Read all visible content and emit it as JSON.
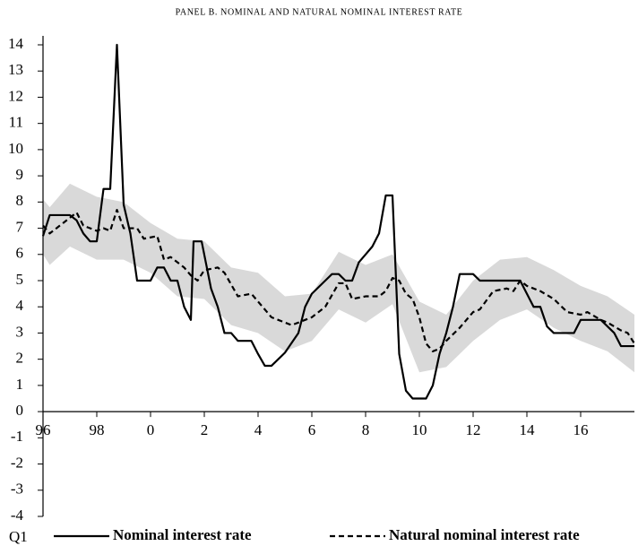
{
  "chart_data": {
    "type": "line",
    "title": "PANEL B. NOMINAL AND NATURAL NOMINAL INTEREST RATE",
    "xlabel": "Q1",
    "xlim": [
      1996,
      2018
    ],
    "xticks": [
      {
        "value": 1996,
        "label": "96"
      },
      {
        "value": 1998,
        "label": "98"
      },
      {
        "value": 2000,
        "label": "0"
      },
      {
        "value": 2002,
        "label": "2"
      },
      {
        "value": 2004,
        "label": "4"
      },
      {
        "value": 2006,
        "label": "6"
      },
      {
        "value": 2008,
        "label": "8"
      },
      {
        "value": 2010,
        "label": "10"
      },
      {
        "value": 2012,
        "label": "12"
      },
      {
        "value": 2014,
        "label": "14"
      },
      {
        "value": 2016,
        "label": "16"
      }
    ],
    "ylim": [
      -4,
      14
    ],
    "yticks": [
      -4,
      -3,
      -2,
      -1,
      0,
      1,
      2,
      3,
      4,
      5,
      6,
      7,
      8,
      9,
      10,
      11,
      12,
      13,
      14
    ],
    "band": {
      "color": "#d9d9d9",
      "x": [
        1996,
        1996.25,
        1997,
        1998,
        1999,
        2000,
        2001,
        2002,
        2003,
        2004,
        2005,
        2006,
        2007,
        2008,
        2009,
        2010,
        2011,
        2012,
        2013,
        2014,
        2015,
        2016,
        2017,
        2018
      ],
      "upper": [
        8.1,
        7.8,
        8.7,
        8.2,
        8.0,
        7.2,
        6.6,
        6.5,
        5.5,
        5.3,
        4.4,
        4.5,
        6.1,
        5.6,
        6.0,
        4.2,
        3.7,
        5.0,
        5.8,
        5.9,
        5.4,
        4.8,
        4.4,
        3.7
      ],
      "lower": [
        6.0,
        5.6,
        6.3,
        5.8,
        5.8,
        5.3,
        4.4,
        4.3,
        3.3,
        3.0,
        2.3,
        2.7,
        3.9,
        3.4,
        4.1,
        1.5,
        1.7,
        2.7,
        3.5,
        3.9,
        3.2,
        2.7,
        2.3,
        1.5
      ]
    },
    "series": [
      {
        "name": "Nominal interest rate",
        "color": "#000000",
        "dashed": false,
        "x": [
          1996,
          1996.25,
          1997,
          1997.25,
          1997.5,
          1997.75,
          1998,
          1998.25,
          1998.5,
          1998.75,
          1999,
          1999.25,
          1999.5,
          2000,
          2000.25,
          2000.5,
          2000.75,
          2001,
          2001.25,
          2001.5,
          2001.6,
          2001.9,
          2002.25,
          2002.5,
          2002.75,
          2003,
          2003.25,
          2003.75,
          2004,
          2004.25,
          2004.5,
          2004.75,
          2005,
          2005.5,
          2005.75,
          2006,
          2006.5,
          2006.75,
          2007,
          2007.25,
          2007.5,
          2007.75,
          2008,
          2008.25,
          2008.5,
          2008.75,
          2009,
          2009.25,
          2009.5,
          2009.75,
          2010.25,
          2010.5,
          2010.75,
          2011,
          2011.25,
          2011.5,
          2012,
          2012.25,
          2013.75,
          2014,
          2014.25,
          2014.5,
          2014.75,
          2015,
          2015.75,
          2016,
          2016.75,
          2017.25,
          2017.5,
          2018
        ],
        "values": [
          6.7,
          7.5,
          7.5,
          7.3,
          6.8,
          6.5,
          6.5,
          8.5,
          8.5,
          14.0,
          7.9,
          6.8,
          5.0,
          5.0,
          5.5,
          5.5,
          5.0,
          5.0,
          4.0,
          3.5,
          6.5,
          6.5,
          4.7,
          4.0,
          3.0,
          3.0,
          2.7,
          2.7,
          2.2,
          1.75,
          1.75,
          2.0,
          2.25,
          3.0,
          4.0,
          4.5,
          5.0,
          5.25,
          5.25,
          5.0,
          5.0,
          5.7,
          6.0,
          6.3,
          6.8,
          8.25,
          8.25,
          2.2,
          0.8,
          0.5,
          0.5,
          1.0,
          2.2,
          3.0,
          4.0,
          5.25,
          5.25,
          5.0,
          5.0,
          4.5,
          4.0,
          4.0,
          3.25,
          3.0,
          3.0,
          3.5,
          3.5,
          3.0,
          2.5,
          2.5
        ]
      },
      {
        "name": "Natural nominal interest rate",
        "color": "#000000",
        "dashed": true,
        "x": [
          1996,
          1996.25,
          1996.75,
          1997.25,
          1997.5,
          1998,
          1998.25,
          1998.5,
          1998.75,
          1999,
          1999.5,
          1999.75,
          2000.25,
          2000.5,
          2000.75,
          2001.25,
          2001.5,
          2001.75,
          2002,
          2002.5,
          2002.75,
          2003.25,
          2003.75,
          2004,
          2004.5,
          2005,
          2005.25,
          2005.75,
          2006,
          2006.5,
          2007,
          2007.25,
          2007.5,
          2008,
          2008.5,
          2008.75,
          2009,
          2009.25,
          2009.5,
          2009.75,
          2010,
          2010.25,
          2010.5,
          2010.75,
          2011,
          2011.5,
          2012,
          2012.25,
          2012.75,
          2013.25,
          2013.5,
          2013.75,
          2014,
          2014.5,
          2015,
          2015.5,
          2016,
          2016.25,
          2016.75,
          2017,
          2017.5,
          2017.75,
          2018
        ],
        "values": [
          7.1,
          6.8,
          7.2,
          7.6,
          7.1,
          6.9,
          7.0,
          6.9,
          7.7,
          7.0,
          7.0,
          6.6,
          6.7,
          5.8,
          5.9,
          5.5,
          5.2,
          5.0,
          5.4,
          5.5,
          5.3,
          4.4,
          4.5,
          4.2,
          3.6,
          3.4,
          3.3,
          3.5,
          3.6,
          4.0,
          4.9,
          4.9,
          4.3,
          4.4,
          4.4,
          4.6,
          5.1,
          5.0,
          4.5,
          4.3,
          3.6,
          2.6,
          2.3,
          2.4,
          2.7,
          3.2,
          3.8,
          3.9,
          4.6,
          4.7,
          4.6,
          5.0,
          4.8,
          4.6,
          4.3,
          3.8,
          3.7,
          3.8,
          3.5,
          3.4,
          3.1,
          3.0,
          2.6
        ]
      }
    ]
  }
}
